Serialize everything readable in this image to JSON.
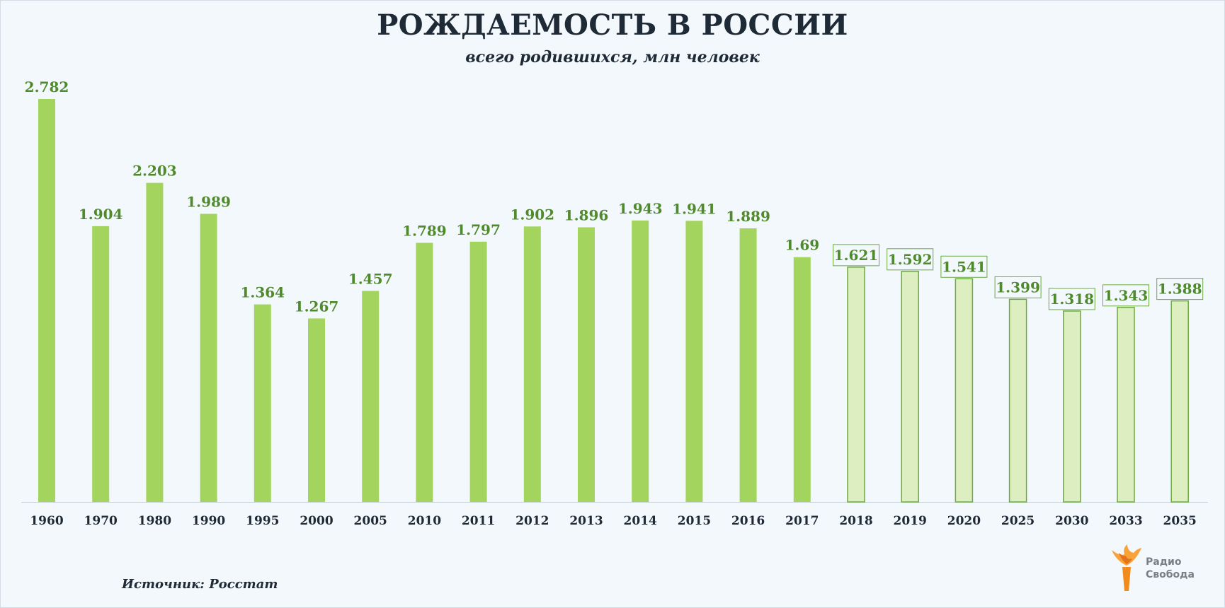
{
  "header": {
    "title": "РОЖДАЕМОСТЬ В РОССИИ",
    "subtitle": "всего родившихся,  млн человек"
  },
  "footer": {
    "source": "Источник: Росстат"
  },
  "logo": {
    "line1": "Радио",
    "line2": "Свобода"
  },
  "colors": {
    "actual_bar": "#a3d55e",
    "forecast_bar": "#ddefc0",
    "forecast_border": "#6aab3c",
    "label": "#4f8a2c",
    "axis_text": "#1f2a37"
  },
  "chart_data": {
    "type": "bar",
    "title": "РОЖДАЕМОСТЬ В РОССИИ",
    "subtitle": "всего родившихся,  млн человек",
    "xlabel": "",
    "ylabel": "",
    "ylim": [
      0,
      2.9
    ],
    "grid": false,
    "legend": "none",
    "categories": [
      "1960",
      "1970",
      "1980",
      "1990",
      "1995",
      "2000",
      "2005",
      "2010",
      "2011",
      "2012",
      "2013",
      "2014",
      "2015",
      "2016",
      "2017",
      "2018",
      "2019",
      "2020",
      "2025",
      "2030",
      "2033",
      "2035"
    ],
    "values": [
      2.782,
      1.904,
      2.203,
      1.989,
      1.364,
      1.267,
      1.457,
      1.789,
      1.797,
      1.902,
      1.896,
      1.943,
      1.941,
      1.889,
      1.69,
      1.621,
      1.592,
      1.541,
      1.399,
      1.318,
      1.343,
      1.388
    ],
    "value_labels": [
      "2.782",
      "1.904",
      "2.203",
      "1.989",
      "1.364",
      "1.267",
      "1.457",
      "1.789",
      "1.797",
      "1.902",
      "1.896",
      "1.943",
      "1.941",
      "1.889",
      "1.69",
      "1.621",
      "1.592",
      "1.541",
      "1.399",
      "1.318",
      "1.343",
      "1.388"
    ],
    "forecast_from": "2018"
  }
}
